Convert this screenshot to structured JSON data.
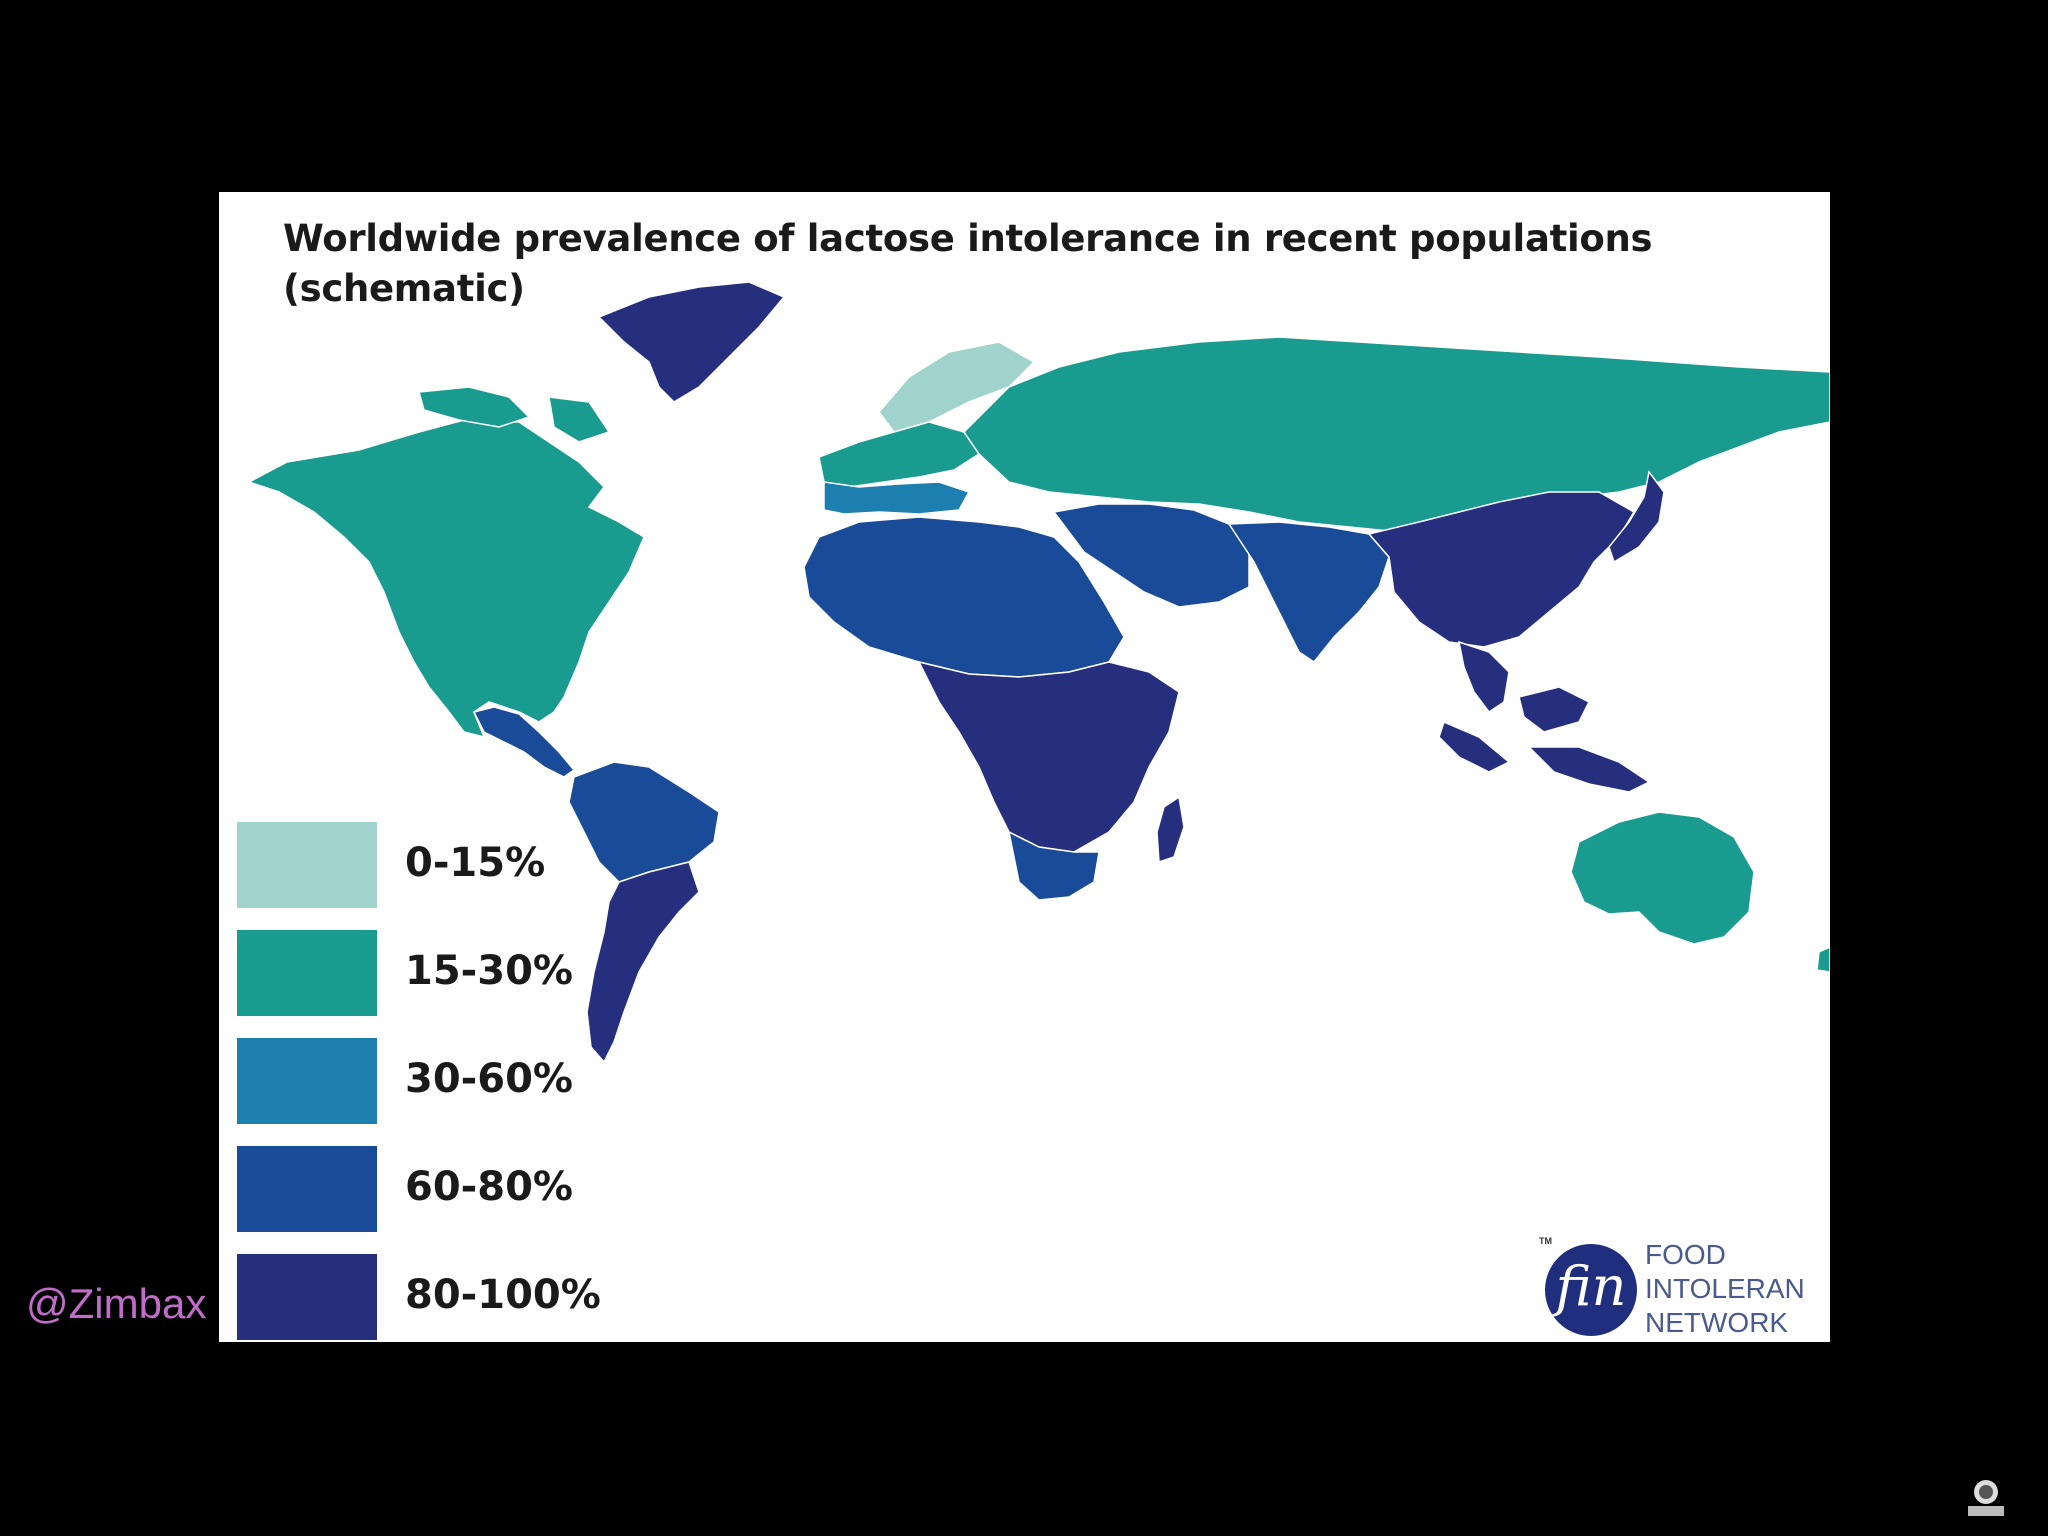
{
  "title": {
    "line1": "Worldwide prevalence of lactose intolerance in recent populations",
    "line2": "(schematic)"
  },
  "legend": [
    {
      "label": "0-15%",
      "color": "#9fd3cc"
    },
    {
      "label": "15-30%",
      "color": "#1a9b8f"
    },
    {
      "label": "30-60%",
      "color": "#1c7fb0"
    },
    {
      "label": "60-80%",
      "color": "#1a4b98"
    },
    {
      "label": "80-100%",
      "color": "#262f7e"
    }
  ],
  "regions": [
    {
      "name": "North America",
      "band": "15-30%"
    },
    {
      "name": "Central America",
      "band": "60-80%"
    },
    {
      "name": "Northern South America",
      "band": "60-80%"
    },
    {
      "name": "Southern South America",
      "band": "80-100%"
    },
    {
      "name": "Greenland",
      "band": "80-100%"
    },
    {
      "name": "Northern Europe",
      "band": "0-15%"
    },
    {
      "name": "Central Europe",
      "band": "15-30%"
    },
    {
      "name": "Southern Europe",
      "band": "30-60%"
    },
    {
      "name": "Russia / North Asia",
      "band": "15-30%"
    },
    {
      "name": "North Africa",
      "band": "60-80%"
    },
    {
      "name": "Middle East",
      "band": "60-80%"
    },
    {
      "name": "South Asia",
      "band": "60-80%"
    },
    {
      "name": "East Asia",
      "band": "80-100%"
    },
    {
      "name": "Southeast Asia",
      "band": "80-100%"
    },
    {
      "name": "Sub-Saharan Africa",
      "band": "80-100%"
    },
    {
      "name": "Southern Africa",
      "band": "60-80%"
    },
    {
      "name": "Madagascar",
      "band": "80-100%"
    },
    {
      "name": "Australia",
      "band": "15-30%"
    }
  ],
  "logo": {
    "mark": "fin",
    "tm": "TM",
    "line1": "FOOD",
    "line2": "INTOLERAN",
    "line3": "NETWORK"
  },
  "watermark": "@Zimbax"
}
